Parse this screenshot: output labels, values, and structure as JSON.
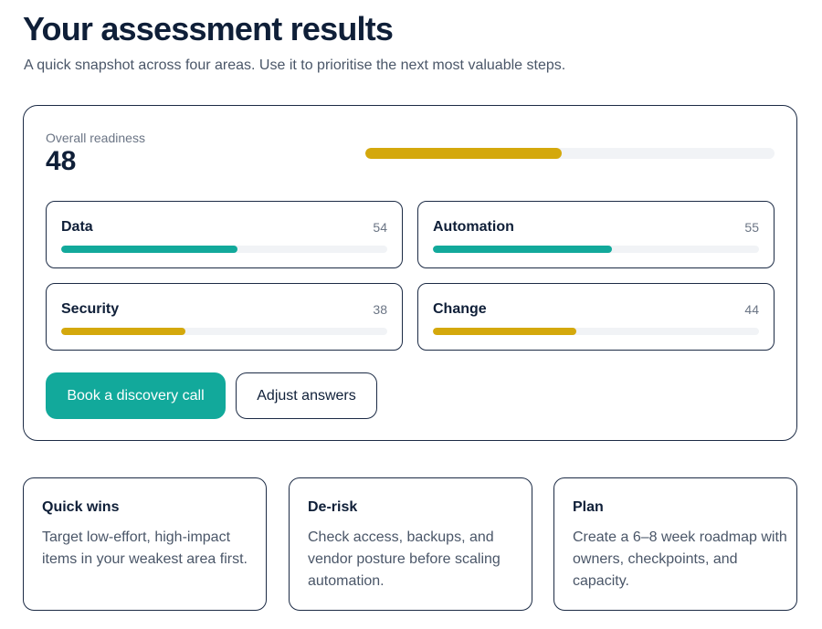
{
  "header": {
    "title": "Your assessment results",
    "subtitle": "A quick snapshot across four areas. Use it to prioritise the next most valuable steps."
  },
  "overall": {
    "label": "Overall readiness",
    "value": "48",
    "percent": 48,
    "color": "#d4a80c"
  },
  "areas": [
    {
      "name": "Data",
      "score": "54",
      "percent": 54,
      "color": "#12a99b"
    },
    {
      "name": "Automation",
      "score": "55",
      "percent": 55,
      "color": "#12a99b"
    },
    {
      "name": "Security",
      "score": "38",
      "percent": 38,
      "color": "#d4a80c"
    },
    {
      "name": "Change",
      "score": "44",
      "percent": 44,
      "color": "#d4a80c"
    }
  ],
  "actions": {
    "primary_label": "Book a discovery call",
    "secondary_label": "Adjust answers"
  },
  "tips": [
    {
      "title": "Quick wins",
      "body": "Target low-effort, high-impact items in your weakest area first."
    },
    {
      "title": "De-risk",
      "body": "Check access, backups, and vendor posture before scaling automation."
    },
    {
      "title": "Plan",
      "body": "Create a 6–8 week roadmap with owners, checkpoints, and capacity."
    }
  ],
  "colors": {
    "teal": "#12a99b",
    "amber": "#d4a80c",
    "navy": "#0f1f38",
    "track": "#f1f3f6"
  }
}
